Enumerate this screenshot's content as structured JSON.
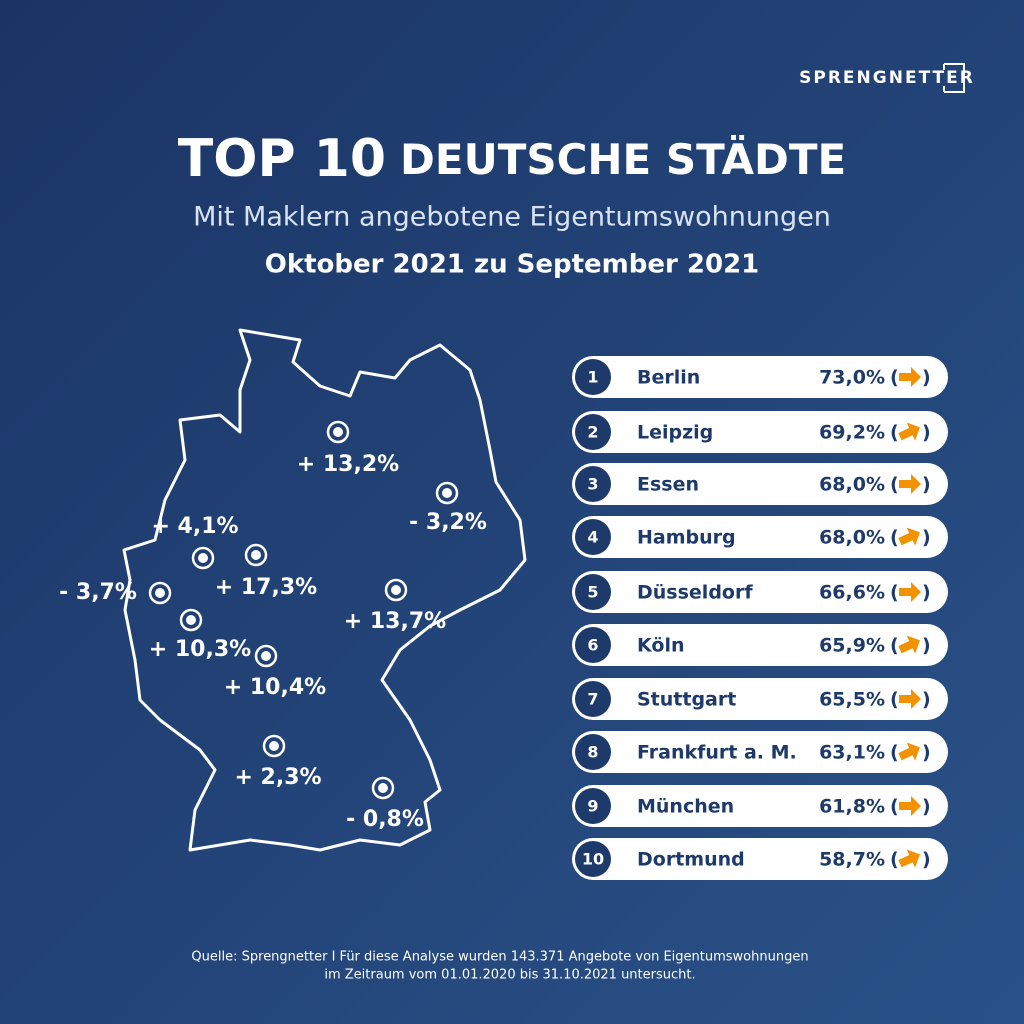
{
  "brand": "SPRENGNETTER",
  "header": {
    "title_strong": "TOP 10",
    "title_rest": "DEUTSCHE STÄDTE",
    "subtitle": "Mit Maklern angebotene Eigentumswohnungen",
    "period": "Oktober 2021 zu September 2021"
  },
  "map": {
    "markers": [
      {
        "label": "+ 13,2%"
      },
      {
        "label": "- 3,2%"
      },
      {
        "label": "+ 4,1%"
      },
      {
        "label": "+ 17,3%"
      },
      {
        "label": "- 3,7%"
      },
      {
        "label": "+ 10,3%"
      },
      {
        "label": "+ 13,7%"
      },
      {
        "label": "+ 10,4%"
      },
      {
        "label": "+ 2,3%"
      },
      {
        "label": "- 0,8%"
      }
    ]
  },
  "ranking": [
    {
      "rank": "1",
      "city": "Berlin",
      "value": "73,0%",
      "arrow": "right"
    },
    {
      "rank": "2",
      "city": "Leipzig",
      "value": "69,2%",
      "arrow": "up-right"
    },
    {
      "rank": "3",
      "city": "Essen",
      "value": "68,0%",
      "arrow": "right"
    },
    {
      "rank": "4",
      "city": "Hamburg",
      "value": "68,0%",
      "arrow": "up-right"
    },
    {
      "rank": "5",
      "city": "Düsseldorf",
      "value": "66,6%",
      "arrow": "right"
    },
    {
      "rank": "6",
      "city": "Köln",
      "value": "65,9%",
      "arrow": "up-right"
    },
    {
      "rank": "7",
      "city": "Stuttgart",
      "value": "65,5%",
      "arrow": "right"
    },
    {
      "rank": "8",
      "city": "Frankfurt a. M.",
      "value": "63,1%",
      "arrow": "up-right"
    },
    {
      "rank": "9",
      "city": "München",
      "value": "61,8%",
      "arrow": "right"
    },
    {
      "rank": "10",
      "city": "Dortmund",
      "value": "58,7%",
      "arrow": "up-right"
    }
  ],
  "footer": {
    "line1": "Quelle: Sprengnetter I Für diese Analyse wurden 143.371 Angebote von Eigentumswohnungen",
    "line2": "im Zeitraum vom 01.01.2020 bis 31.10.2021 untersucht."
  }
}
